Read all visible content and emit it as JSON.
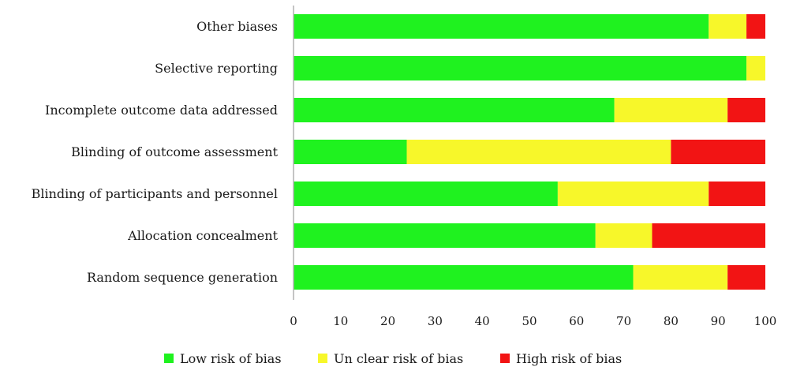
{
  "chart_data": {
    "type": "bar",
    "orientation": "horizontal",
    "stacked": true,
    "categories": [
      "Other biases",
      "Selective reporting",
      "Incomplete outcome data addressed",
      "Blinding of outcome assessment",
      "Blinding of participants and personnel",
      "Allocation concealment",
      "Random sequence generation"
    ],
    "series": [
      {
        "name": "Low risk of bias",
        "color": "#1ff21f",
        "values": [
          88,
          96,
          68,
          24,
          56,
          64,
          72
        ]
      },
      {
        "name": "Un clear risk of bias",
        "color": "#f7f72a",
        "values": [
          8,
          4,
          24,
          56,
          32,
          12,
          20
        ]
      },
      {
        "name": "High risk of bias",
        "color": "#f21414",
        "values": [
          4,
          0,
          8,
          20,
          12,
          24,
          8
        ]
      }
    ],
    "xlim": [
      0,
      100
    ],
    "xticks": [
      0,
      10,
      20,
      30,
      40,
      50,
      60,
      70,
      80,
      90,
      100
    ],
    "grid": false,
    "legend_position": "bottom"
  }
}
